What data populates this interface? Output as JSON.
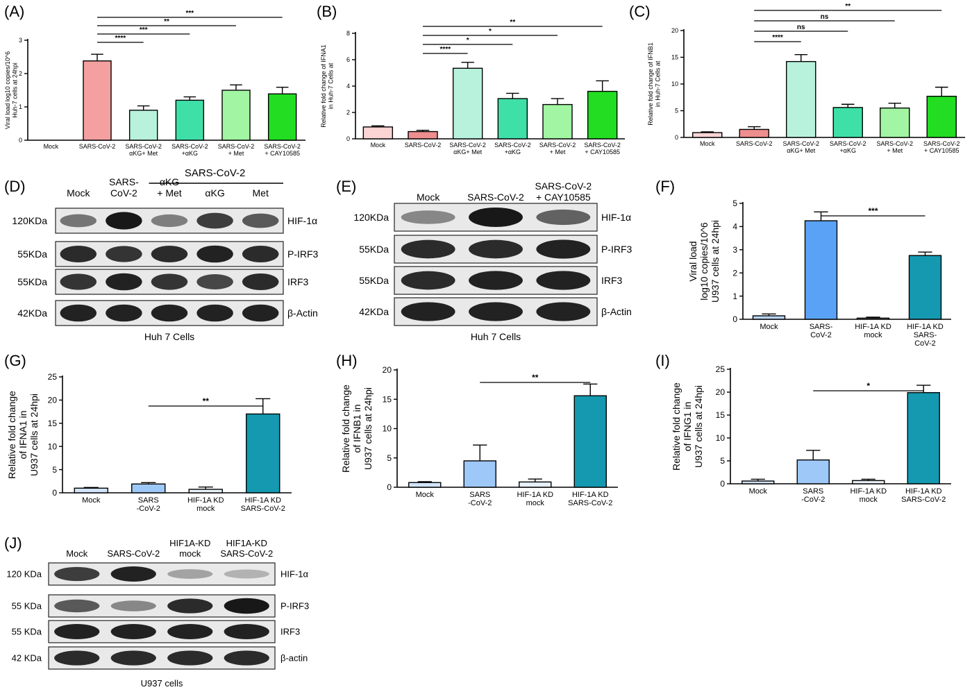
{
  "panel_labels": [
    "(A)",
    "(B)",
    "(C)",
    "(D)",
    "(E)",
    "(F)",
    "(G)",
    "(H)",
    "(I)",
    "(J)"
  ],
  "chart_data": [
    {
      "id": "A",
      "type": "bar",
      "ylabel_lines": [
        "Viral load log10 copies/10^6",
        "Huh-7 cells at 24hpi"
      ],
      "ylim": [
        0,
        3
      ],
      "yticks": [
        0,
        1,
        2,
        3
      ],
      "categories": [
        [
          "Mock"
        ],
        [
          "SARS-CoV-2"
        ],
        [
          "SARS-CoV-2",
          "αKG+ Met"
        ],
        [
          "SARS-CoV-2",
          "+αKG"
        ],
        [
          "SARS-CoV-2",
          "+  Met"
        ],
        [
          "SARS-CoV-2",
          "+ CAY10585"
        ]
      ],
      "values": [
        0,
        2.38,
        0.9,
        1.2,
        1.5,
        1.39
      ],
      "errors": [
        0,
        0.2,
        0.13,
        0.1,
        0.16,
        0.2
      ],
      "colors": [
        "#ffffff",
        "#f4a0a0",
        "#b8f2dc",
        "#3fe0a8",
        "#a2f5a2",
        "#22dd22"
      ],
      "significance": [
        {
          "from": 1,
          "to": 2,
          "label": "****"
        },
        {
          "from": 1,
          "to": 3,
          "label": "***"
        },
        {
          "from": 1,
          "to": 4,
          "label": "**"
        },
        {
          "from": 1,
          "to": 5,
          "label": "***"
        }
      ]
    },
    {
      "id": "B",
      "type": "bar",
      "ylabel_lines": [
        "Relative fold change of IFNA1",
        "in Huh-7 Cells at"
      ],
      "ylim": [
        0,
        8
      ],
      "yticks": [
        0,
        2,
        4,
        6,
        8
      ],
      "categories": [
        [
          "Mock"
        ],
        [
          "SARS-CoV-2"
        ],
        [
          "SARS-CoV-2",
          "αKG+ Met"
        ],
        [
          "SARS-CoV-2",
          "+αKG"
        ],
        [
          "SARS-CoV-2",
          "+  Met"
        ],
        [
          "SARS-CoV-2",
          "+ CAY10585"
        ]
      ],
      "values": [
        0.9,
        0.55,
        5.35,
        3.05,
        2.6,
        3.6
      ],
      "errors": [
        0.08,
        0.1,
        0.45,
        0.4,
        0.45,
        0.8
      ],
      "colors": [
        "#fbd4d4",
        "#ee8e8e",
        "#b8f2dc",
        "#3fe0a8",
        "#a2f5a2",
        "#22dd22"
      ],
      "significance": [
        {
          "from": 1,
          "to": 2,
          "label": "****"
        },
        {
          "from": 1,
          "to": 3,
          "label": "*"
        },
        {
          "from": 1,
          "to": 4,
          "label": "*"
        },
        {
          "from": 1,
          "to": 5,
          "label": "**"
        }
      ]
    },
    {
      "id": "C",
      "type": "bar",
      "ylabel_lines": [
        "Relative fold change of IFNB1",
        "in Huh-7 Cells at"
      ],
      "ylim": [
        0,
        20
      ],
      "yticks": [
        0,
        5,
        10,
        15,
        20
      ],
      "categories": [
        [
          "Mock"
        ],
        [
          "SARS-CoV-2"
        ],
        [
          "SARS-CoV-2",
          "αKG+ Met"
        ],
        [
          "SARS-CoV-2",
          "+αKG"
        ],
        [
          "SARS-CoV-2",
          "+  Met"
        ],
        [
          "SARS-CoV-2",
          "+ CAY10585"
        ]
      ],
      "values": [
        0.9,
        1.5,
        14.2,
        5.6,
        5.5,
        7.7
      ],
      "errors": [
        0.15,
        0.5,
        1.3,
        0.6,
        0.9,
        1.7
      ],
      "colors": [
        "#fbd4d4",
        "#ee8e8e",
        "#b8f2dc",
        "#3fe0a8",
        "#a2f5a2",
        "#22dd22"
      ],
      "significance": [
        {
          "from": 1,
          "to": 2,
          "label": "****"
        },
        {
          "from": 1,
          "to": 3,
          "label": "ns"
        },
        {
          "from": 1,
          "to": 4,
          "label": "ns"
        },
        {
          "from": 1,
          "to": 5,
          "label": "**"
        }
      ]
    },
    {
      "id": "F",
      "type": "bar",
      "ylabel_lines": [
        "Viral load",
        "log10 copies/10^6",
        "U937 cells at 24hpi"
      ],
      "ylim": [
        0,
        5
      ],
      "yticks": [
        0,
        1,
        2,
        3,
        4,
        5
      ],
      "categories": [
        [
          "Mock"
        ],
        [
          "SARS-",
          "CoV-2"
        ],
        [
          "HIF-1A KD",
          "mock"
        ],
        [
          "HIF-1A KD",
          "SARS-",
          "CoV-2"
        ]
      ],
      "values": [
        0.15,
        4.25,
        0.05,
        2.75
      ],
      "errors": [
        0.08,
        0.38,
        0.04,
        0.15
      ],
      "colors": [
        "#b8d4f8",
        "#5aa2f5",
        "#ffffff",
        "#1499b0"
      ],
      "significance": [
        {
          "from": 1,
          "to": 3,
          "label": "***"
        }
      ]
    },
    {
      "id": "G",
      "type": "bar",
      "ylabel_lines": [
        "Relative fold change",
        "of IFNA1 in",
        "U937 cells at 24hpi"
      ],
      "ylim": [
        0,
        25
      ],
      "yticks": [
        0,
        5,
        10,
        15,
        20,
        25
      ],
      "categories": [
        [
          "Mock"
        ],
        [
          "SARS",
          "-CoV-2"
        ],
        [
          "HIF-1A KD",
          "mock"
        ],
        [
          "HIF-1A KD",
          "SARS-CoV-2"
        ]
      ],
      "values": [
        1.0,
        1.9,
        0.75,
        17.0
      ],
      "errors": [
        0.15,
        0.3,
        0.5,
        3.3
      ],
      "colors": [
        "#d2e4fb",
        "#9ec8f8",
        "#e8f0f8",
        "#1499b0"
      ],
      "significance": [
        {
          "from": 1,
          "to": 3,
          "label": "**"
        }
      ]
    },
    {
      "id": "H",
      "type": "bar",
      "ylabel_lines": [
        "Relative fold change",
        "of IFNB1 in",
        "U937 cells at 24hpi"
      ],
      "ylim": [
        0,
        20
      ],
      "yticks": [
        0,
        5,
        10,
        15,
        20
      ],
      "categories": [
        [
          "Mock"
        ],
        [
          "SARS",
          "-CoV-2"
        ],
        [
          "HIF-1A KD",
          "mock"
        ],
        [
          "HIF-1A KD",
          "SARS-CoV-2"
        ]
      ],
      "values": [
        0.8,
        4.5,
        0.9,
        15.6
      ],
      "errors": [
        0.15,
        2.7,
        0.5,
        2.0
      ],
      "colors": [
        "#d2e4fb",
        "#9ec8f8",
        "#e8f0f8",
        "#1499b0"
      ],
      "significance": [
        {
          "from": 1,
          "to": 3,
          "label": "**"
        }
      ]
    },
    {
      "id": "I",
      "type": "bar",
      "ylabel_lines": [
        "Relative fold change",
        "of IFNG1 in",
        "U937 cells at 24hpi"
      ],
      "ylim": [
        0,
        25
      ],
      "yticks": [
        0,
        5,
        10,
        15,
        20,
        25
      ],
      "categories": [
        [
          "Mock"
        ],
        [
          "SARS",
          "-CoV-2"
        ],
        [
          "HIF-1A KD",
          "mock"
        ],
        [
          "HIF-1A KD",
          "SARS-CoV-2"
        ]
      ],
      "values": [
        0.6,
        5.2,
        0.7,
        19.9
      ],
      "errors": [
        0.4,
        2.1,
        0.3,
        1.6
      ],
      "colors": [
        "#d2e4fb",
        "#9ec8f8",
        "#e8f0f8",
        "#1499b0"
      ],
      "significance": [
        {
          "from": 1,
          "to": 3,
          "label": "*"
        }
      ]
    }
  ],
  "blots": [
    {
      "id": "D",
      "group_label": "SARS-CoV-2",
      "lanes": [
        [
          "Mock"
        ],
        [
          "SARS-",
          "CoV-2"
        ],
        [
          "αKG",
          "+ Met"
        ],
        [
          "αKG"
        ],
        [
          "Met"
        ]
      ],
      "rows": [
        {
          "mw": "120KDa",
          "protein": "HIF-1α",
          "intensities": [
            0.45,
            0.95,
            0.4,
            0.75,
            0.6
          ]
        },
        {
          "mw": "55KDa",
          "protein": "P-IRF3",
          "intensities": [
            0.85,
            0.8,
            0.85,
            0.9,
            0.85
          ]
        },
        {
          "mw": "55KDa",
          "protein": "IRF3",
          "intensities": [
            0.8,
            0.9,
            0.8,
            0.7,
            0.85
          ]
        },
        {
          "mw": "42KDa",
          "protein": "β-Actin",
          "intensities": [
            0.9,
            0.9,
            0.9,
            0.9,
            0.9
          ]
        }
      ],
      "caption": "Huh 7 Cells"
    },
    {
      "id": "E",
      "lanes": [
        [
          "Mock"
        ],
        [
          "SARS-CoV-2"
        ],
        [
          "SARS-CoV-2",
          "+ CAY10585"
        ]
      ],
      "rows": [
        {
          "mw": "120KDa",
          "protein": "HIF-1α",
          "intensities": [
            0.35,
            0.95,
            0.55
          ]
        },
        {
          "mw": "55KDa",
          "protein": "P-IRF3",
          "intensities": [
            0.85,
            0.85,
            0.9
          ]
        },
        {
          "mw": "55KDa",
          "protein": "IRF3",
          "intensities": [
            0.85,
            0.9,
            0.9
          ]
        },
        {
          "mw": "42KDa",
          "protein": "β-Actin",
          "intensities": [
            0.9,
            0.9,
            0.9
          ]
        }
      ],
      "caption": "Huh 7 Cells"
    },
    {
      "id": "J",
      "lanes": [
        [
          "Mock"
        ],
        [
          "SARS-CoV-2"
        ],
        [
          "HIF1A-KD",
          "mock"
        ],
        [
          "HIF1A-KD",
          "SARS-CoV-2"
        ]
      ],
      "rows": [
        {
          "mw": "120 KDa",
          "protein": "HIF-1α",
          "intensities": [
            0.75,
            0.9,
            0.2,
            0.12
          ]
        },
        {
          "mw": "55 KDa",
          "protein": "P-IRF3",
          "intensities": [
            0.6,
            0.35,
            0.85,
            0.95
          ]
        },
        {
          "mw": "55 KDa",
          "protein": "IRF3",
          "intensities": [
            0.9,
            0.9,
            0.9,
            0.9
          ]
        },
        {
          "mw": "42 KDa",
          "protein": "β-actin",
          "intensities": [
            0.85,
            0.85,
            0.85,
            0.85
          ]
        }
      ],
      "caption": "U937 cells"
    }
  ]
}
